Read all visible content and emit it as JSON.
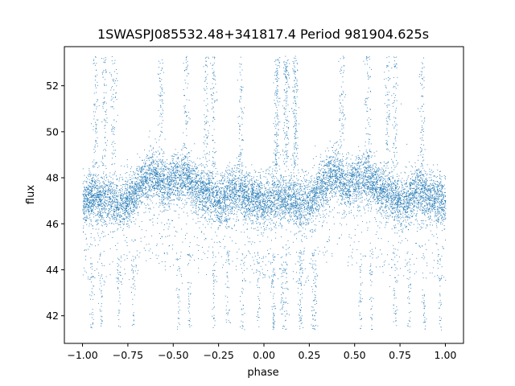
{
  "chart_data": {
    "type": "scatter",
    "title": "1SWASPJ085532.48+341817.4 Period 981904.625s",
    "xlabel": "phase",
    "ylabel": "flux",
    "xlim": [
      -1.1,
      1.1
    ],
    "ylim": [
      40.8,
      53.7
    ],
    "xticks": [
      -1.0,
      -0.75,
      -0.5,
      -0.25,
      0.0,
      0.25,
      0.5,
      0.75,
      1.0
    ],
    "xtick_labels": [
      "−1.00",
      "−0.75",
      "−0.50",
      "−0.25",
      "0.00",
      "0.25",
      "0.50",
      "0.75",
      "1.00"
    ],
    "yticks": [
      42,
      44,
      46,
      48,
      50,
      52
    ],
    "ytick_labels": [
      "42",
      "44",
      "46",
      "48",
      "50",
      "52"
    ],
    "grid": false,
    "marker_color": "#1f77b4",
    "series": [
      {
        "profile_phase": [
          -1.0,
          -0.95,
          -0.9,
          -0.85,
          -0.8,
          -0.75,
          -0.7,
          -0.65,
          -0.6,
          -0.55,
          -0.5,
          -0.45,
          -0.4,
          -0.35,
          -0.3,
          -0.25,
          -0.2,
          -0.15,
          -0.1,
          -0.05,
          0.0
        ],
        "profile_flux": [
          46.9,
          47.2,
          47.0,
          47.1,
          46.8,
          47.0,
          47.5,
          48.0,
          48.2,
          47.6,
          47.9,
          48.0,
          47.8,
          47.4,
          47.3,
          46.9,
          47.2,
          47.4,
          47.2,
          47.1,
          46.9
        ],
        "scatter_sigma": 0.55,
        "n_points": 10000,
        "bright_flare_phases": [
          -0.93,
          -0.88,
          -0.83,
          -0.57,
          -0.43,
          -0.32,
          -0.28,
          -0.13,
          0.07,
          0.12,
          0.17
        ],
        "bright_flare_flux_range": [
          48.5,
          53.3
        ],
        "faint_dip_phases": [
          -0.95,
          -0.9,
          -0.8,
          -0.72,
          -0.47,
          -0.41,
          -0.28,
          -0.2,
          -0.12,
          -0.03,
          0.05,
          0.12,
          0.2,
          0.27
        ],
        "faint_dip_flux_range": [
          41.4,
          44.8
        ]
      }
    ]
  }
}
